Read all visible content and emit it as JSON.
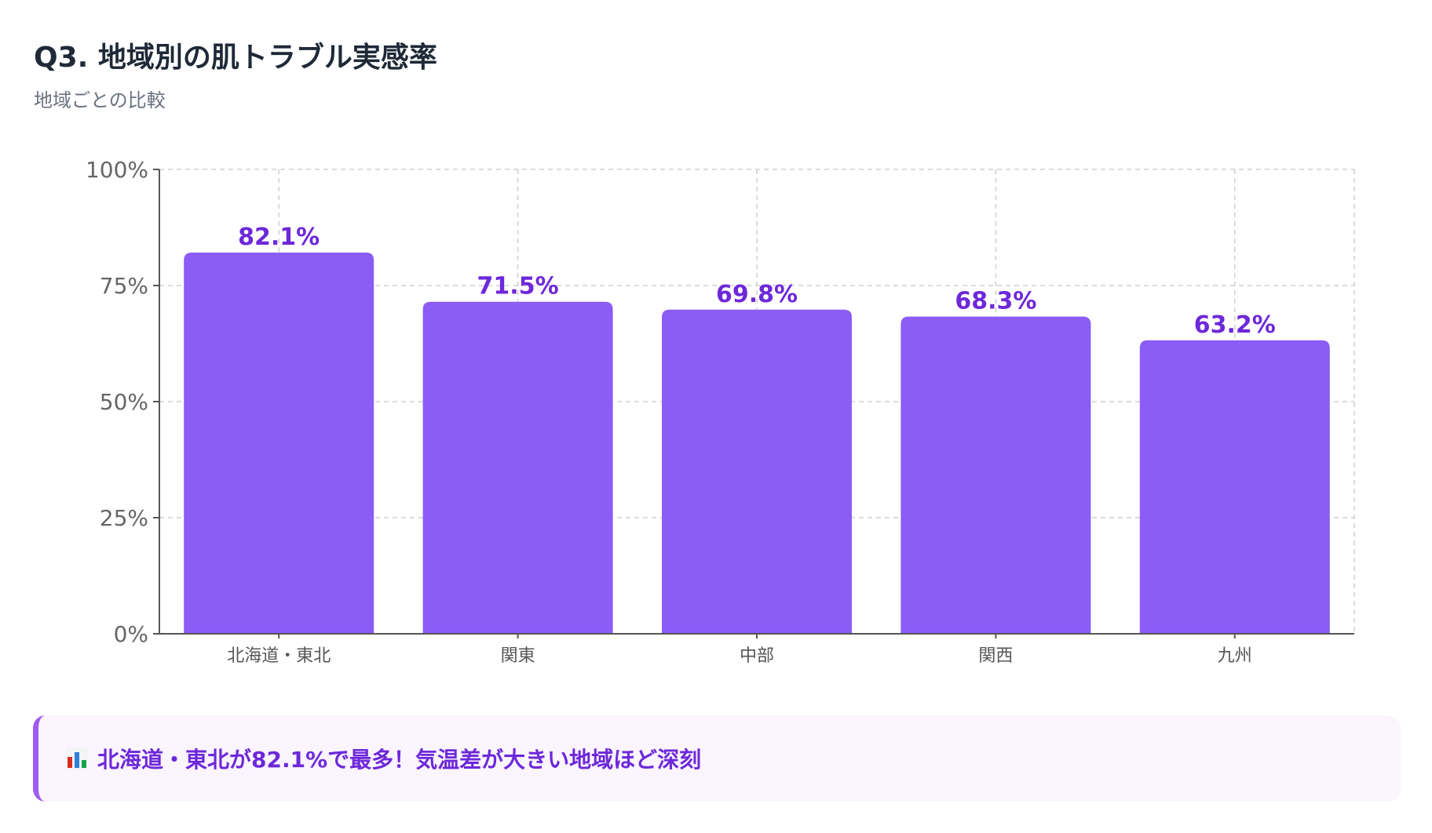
{
  "header": {
    "title": "Q3. 地域別の肌トラブル実感率",
    "subtitle": "地域ごとの比較"
  },
  "chart_data": {
    "type": "bar",
    "categories": [
      "北海道・東北",
      "関東",
      "中部",
      "関西",
      "九州"
    ],
    "values": [
      82.1,
      71.5,
      69.8,
      68.3,
      63.2
    ],
    "data_labels": [
      "82.1%",
      "71.5%",
      "69.8%",
      "68.3%",
      "63.2%"
    ],
    "y_ticks": [
      0,
      25,
      50,
      75,
      100
    ],
    "y_tick_labels": [
      "0%",
      "25%",
      "50%",
      "75%",
      "100%"
    ],
    "ylim": [
      0,
      100
    ],
    "grid": true,
    "bar_color": "#8b5cf6",
    "label_color": "#6d28d9"
  },
  "callout": {
    "icon": "bar-chart-icon",
    "text": "北海道・東北が82.1%で最多！気温差が大きい地域ほど深刻",
    "accent_color": "#9f5cf0",
    "background_color": "#faf5ff"
  }
}
